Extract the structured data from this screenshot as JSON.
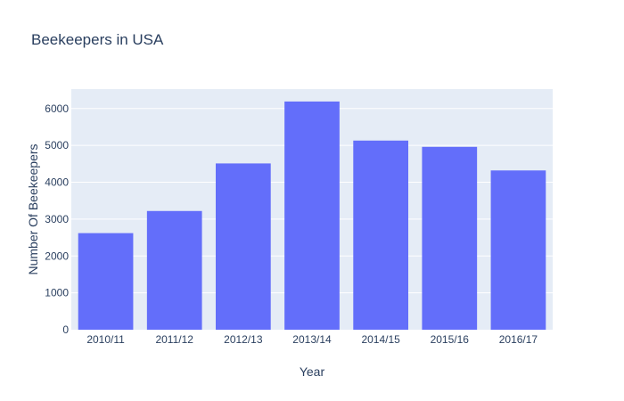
{
  "colors": {
    "plot_background": "#E5ECF6",
    "grid": "#ffffff",
    "bar": "#636EFA",
    "text": "#2a3f5f"
  },
  "chart_data": {
    "type": "bar",
    "title": "Beekeepers in USA",
    "xlabel": "Year",
    "ylabel": "Number Of Beekeepers",
    "categories": [
      "2010/11",
      "2011/12",
      "2012/13",
      "2013/14",
      "2014/15",
      "2015/16",
      "2016/17"
    ],
    "values": [
      2620,
      3220,
      4510,
      6190,
      5130,
      4960,
      4320
    ],
    "ylim": [
      0,
      6526
    ],
    "yticks": [
      0,
      1000,
      2000,
      3000,
      4000,
      5000,
      6000
    ],
    "grid": true,
    "legend": "none"
  }
}
